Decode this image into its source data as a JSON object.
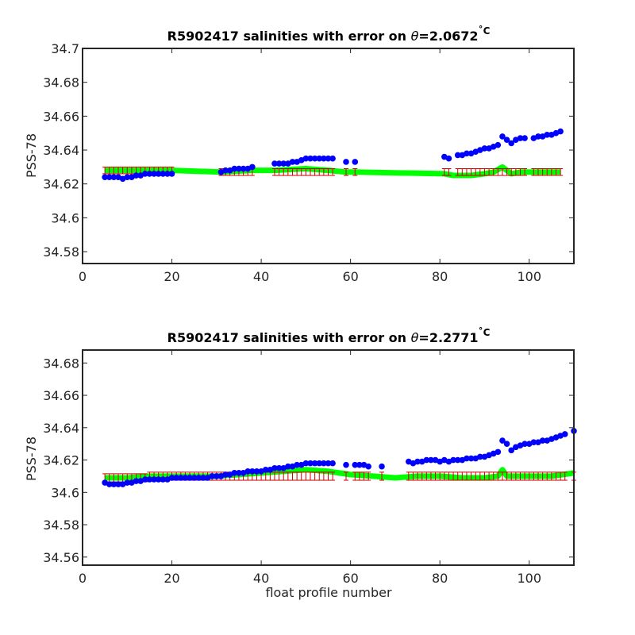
{
  "chart_data": [
    {
      "type": "scatter",
      "title": "R5902417 salinities with error on θ=2.0672˚C",
      "title_prefix": "R5902417 salinities with error on ",
      "title_theta": "θ",
      "title_value": "=2.0672",
      "title_unit": "˚C",
      "xlabel": "",
      "ylabel": "PSS-78",
      "xlim": [
        0,
        110
      ],
      "ylim": [
        34.573,
        34.7
      ],
      "xticks": [
        0,
        20,
        40,
        60,
        80,
        100
      ],
      "xtick_labels": [
        "0",
        "20",
        "40",
        "60",
        "80",
        "100"
      ],
      "yticks": [
        34.58,
        34.6,
        34.62,
        34.64,
        34.66,
        34.68,
        34.7
      ],
      "ytick_labels": [
        "34.58",
        "34.6",
        "34.62",
        "34.64",
        "34.66",
        "34.68",
        "34.7"
      ],
      "grid": false,
      "colors": {
        "float": "#0000ff",
        "mapped": "#00ff00",
        "errorbar": "#cc0000"
      },
      "series": [
        {
          "role": "float-salinity",
          "x": [
            5,
            6,
            7,
            8,
            9,
            10,
            11,
            12,
            13,
            14,
            15,
            16,
            17,
            18,
            19,
            20,
            31,
            32,
            33,
            34,
            35,
            36,
            37,
            38,
            43,
            44,
            45,
            46,
            47,
            48,
            49,
            50,
            51,
            52,
            53,
            54,
            55,
            56,
            59,
            61,
            81,
            82,
            84,
            85,
            86,
            87,
            88,
            89,
            90,
            91,
            92,
            93,
            94,
            95,
            96,
            97,
            98,
            99,
            101,
            102,
            103,
            104,
            105,
            106,
            107
          ],
          "y": [
            34.624,
            34.624,
            34.624,
            34.624,
            34.623,
            34.624,
            34.624,
            34.625,
            34.625,
            34.626,
            34.626,
            34.626,
            34.626,
            34.626,
            34.626,
            34.626,
            34.627,
            34.628,
            34.628,
            34.629,
            34.629,
            34.629,
            34.629,
            34.63,
            34.632,
            34.632,
            34.632,
            34.632,
            34.633,
            34.633,
            34.634,
            34.635,
            34.635,
            34.635,
            34.635,
            34.635,
            34.635,
            34.635,
            34.633,
            34.633,
            34.636,
            34.635,
            34.637,
            34.637,
            34.638,
            34.638,
            34.639,
            34.64,
            34.641,
            34.641,
            34.642,
            34.643,
            34.648,
            34.646,
            34.644,
            34.646,
            34.647,
            34.647,
            34.647,
            34.648,
            34.648,
            34.649,
            34.649,
            34.65,
            34.651
          ]
        },
        {
          "role": "mapped-salinity",
          "x": [
            5,
            10,
            15,
            20,
            31,
            38,
            43,
            50,
            55,
            59,
            61,
            81,
            83,
            85,
            87,
            90,
            92,
            94,
            96,
            98,
            100,
            105,
            107
          ],
          "y": [
            34.628,
            34.628,
            34.628,
            34.628,
            34.627,
            34.628,
            34.628,
            34.629,
            34.628,
            34.627,
            34.627,
            34.626,
            34.625,
            34.625,
            34.625,
            34.626,
            34.627,
            34.63,
            34.626,
            34.627,
            34.627,
            34.627,
            34.627
          ]
        },
        {
          "role": "mapped-error",
          "x": [
            5,
            6,
            7,
            8,
            9,
            10,
            11,
            12,
            13,
            14,
            15,
            16,
            17,
            18,
            19,
            20,
            31,
            32,
            33,
            34,
            35,
            36,
            37,
            38,
            43,
            44,
            45,
            46,
            47,
            48,
            49,
            50,
            51,
            52,
            53,
            54,
            55,
            56,
            59,
            61,
            81,
            82,
            84,
            85,
            86,
            87,
            88,
            89,
            90,
            91,
            92,
            93,
            94,
            95,
            96,
            97,
            98,
            99,
            101,
            102,
            103,
            104,
            105,
            106,
            107
          ],
          "y": [
            34.628,
            34.628,
            34.628,
            34.628,
            34.628,
            34.628,
            34.628,
            34.628,
            34.628,
            34.628,
            34.628,
            34.628,
            34.628,
            34.628,
            34.628,
            34.628,
            34.627,
            34.627,
            34.627,
            34.627,
            34.627,
            34.627,
            34.627,
            34.627,
            34.627,
            34.627,
            34.627,
            34.627,
            34.627,
            34.627,
            34.627,
            34.627,
            34.627,
            34.627,
            34.627,
            34.627,
            34.627,
            34.627,
            34.627,
            34.627,
            34.627,
            34.627,
            34.627,
            34.627,
            34.627,
            34.627,
            34.627,
            34.627,
            34.627,
            34.627,
            34.627,
            34.627,
            34.627,
            34.627,
            34.627,
            34.627,
            34.627,
            34.627,
            34.627,
            34.627,
            34.627,
            34.627,
            34.627,
            34.627,
            34.627
          ],
          "err": 0.002
        }
      ]
    },
    {
      "type": "scatter",
      "title": "R5902417 salinities with error on θ=2.2771˚C",
      "title_prefix": "R5902417 salinities with error on ",
      "title_theta": "θ",
      "title_value": "=2.2771",
      "title_unit": "˚C",
      "xlabel": "float profile number",
      "ylabel": "PSS-78",
      "xlim": [
        0,
        110
      ],
      "ylim": [
        34.555,
        34.688
      ],
      "xticks": [
        0,
        20,
        40,
        60,
        80,
        100
      ],
      "xtick_labels": [
        "0",
        "20",
        "40",
        "60",
        "80",
        "100"
      ],
      "yticks": [
        34.56,
        34.58,
        34.6,
        34.62,
        34.64,
        34.66,
        34.68
      ],
      "ytick_labels": [
        "34.56",
        "34.58",
        "34.6",
        "34.62",
        "34.64",
        "34.66",
        "34.68"
      ],
      "grid": false,
      "colors": {
        "float": "#0000ff",
        "mapped": "#00ff00",
        "errorbar": "#cc0000"
      },
      "series": [
        {
          "role": "float-salinity",
          "x": [
            5,
            6,
            7,
            8,
            9,
            10,
            11,
            12,
            13,
            14,
            15,
            16,
            17,
            18,
            19,
            20,
            21,
            22,
            23,
            24,
            25,
            26,
            27,
            28,
            29,
            30,
            31,
            32,
            33,
            34,
            35,
            36,
            37,
            38,
            39,
            40,
            41,
            42,
            43,
            44,
            45,
            46,
            47,
            48,
            49,
            50,
            51,
            52,
            53,
            54,
            55,
            56,
            59,
            61,
            62,
            63,
            64,
            67,
            73,
            74,
            75,
            76,
            77,
            78,
            79,
            80,
            81,
            82,
            83,
            84,
            85,
            86,
            87,
            88,
            89,
            90,
            91,
            92,
            93,
            94,
            95,
            96,
            97,
            98,
            99,
            100,
            101,
            102,
            103,
            104,
            105,
            106,
            107,
            108,
            110
          ],
          "y": [
            34.606,
            34.605,
            34.605,
            34.605,
            34.605,
            34.606,
            34.606,
            34.607,
            34.607,
            34.608,
            34.608,
            34.608,
            34.608,
            34.608,
            34.608,
            34.609,
            34.609,
            34.609,
            34.609,
            34.609,
            34.609,
            34.609,
            34.609,
            34.609,
            34.61,
            34.61,
            34.61,
            34.611,
            34.611,
            34.612,
            34.612,
            34.612,
            34.613,
            34.613,
            34.613,
            34.613,
            34.614,
            34.614,
            34.615,
            34.615,
            34.615,
            34.616,
            34.616,
            34.617,
            34.617,
            34.618,
            34.618,
            34.618,
            34.618,
            34.618,
            34.618,
            34.618,
            34.617,
            34.617,
            34.617,
            34.617,
            34.616,
            34.616,
            34.619,
            34.618,
            34.619,
            34.619,
            34.62,
            34.62,
            34.62,
            34.619,
            34.62,
            34.619,
            34.62,
            34.62,
            34.62,
            34.621,
            34.621,
            34.621,
            34.622,
            34.622,
            34.623,
            34.624,
            34.625,
            34.632,
            34.63,
            34.626,
            34.628,
            34.629,
            34.63,
            34.63,
            34.631,
            34.631,
            34.632,
            34.632,
            34.633,
            34.634,
            34.635,
            34.636,
            34.638
          ]
        },
        {
          "role": "mapped-salinity",
          "x": [
            5,
            10,
            15,
            20,
            30,
            35,
            40,
            45,
            50,
            55,
            60,
            65,
            70,
            75,
            80,
            85,
            90,
            93,
            94,
            95,
            100,
            105,
            110
          ],
          "y": [
            34.609,
            34.609,
            34.61,
            34.61,
            34.61,
            34.611,
            34.612,
            34.613,
            34.614,
            34.613,
            34.611,
            34.61,
            34.609,
            34.61,
            34.61,
            34.609,
            34.609,
            34.61,
            34.614,
            34.61,
            34.61,
            34.61,
            34.612
          ]
        },
        {
          "role": "mapped-error",
          "x": [
            5,
            6,
            7,
            8,
            9,
            10,
            11,
            12,
            13,
            14,
            15,
            16,
            17,
            18,
            19,
            20,
            21,
            22,
            23,
            24,
            25,
            26,
            27,
            28,
            29,
            30,
            31,
            32,
            33,
            34,
            35,
            36,
            37,
            38,
            39,
            40,
            41,
            42,
            43,
            44,
            45,
            46,
            47,
            48,
            49,
            50,
            51,
            52,
            53,
            54,
            55,
            56,
            59,
            61,
            62,
            63,
            64,
            67,
            73,
            74,
            75,
            76,
            77,
            78,
            79,
            80,
            81,
            82,
            83,
            84,
            85,
            86,
            87,
            88,
            89,
            90,
            91,
            92,
            93,
            94,
            95,
            96,
            97,
            98,
            99,
            100,
            101,
            102,
            103,
            104,
            105,
            106,
            107,
            108,
            110
          ],
          "y": [
            34.609,
            34.609,
            34.609,
            34.609,
            34.609,
            34.609,
            34.609,
            34.609,
            34.609,
            34.609,
            34.61,
            34.61,
            34.61,
            34.61,
            34.61,
            34.61,
            34.61,
            34.61,
            34.61,
            34.61,
            34.61,
            34.61,
            34.61,
            34.61,
            34.61,
            34.61,
            34.61,
            34.61,
            34.61,
            34.61,
            34.61,
            34.61,
            34.61,
            34.61,
            34.61,
            34.61,
            34.61,
            34.61,
            34.61,
            34.61,
            34.61,
            34.61,
            34.61,
            34.61,
            34.61,
            34.61,
            34.61,
            34.61,
            34.61,
            34.61,
            34.61,
            34.61,
            34.61,
            34.61,
            34.61,
            34.61,
            34.61,
            34.61,
            34.61,
            34.61,
            34.61,
            34.61,
            34.61,
            34.61,
            34.61,
            34.61,
            34.61,
            34.61,
            34.61,
            34.61,
            34.61,
            34.61,
            34.61,
            34.61,
            34.61,
            34.61,
            34.61,
            34.61,
            34.61,
            34.61,
            34.61,
            34.61,
            34.61,
            34.61,
            34.61,
            34.61,
            34.61,
            34.61,
            34.61,
            34.61,
            34.61,
            34.61,
            34.61,
            34.61,
            34.61
          ],
          "err": 0.0025
        }
      ]
    }
  ]
}
